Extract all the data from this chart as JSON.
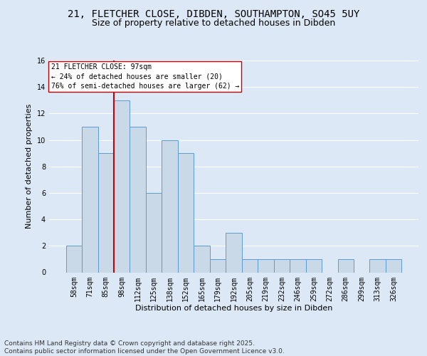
{
  "title1": "21, FLETCHER CLOSE, DIBDEN, SOUTHAMPTON, SO45 5UY",
  "title2": "Size of property relative to detached houses in Dibden",
  "xlabel": "Distribution of detached houses by size in Dibden",
  "ylabel": "Number of detached properties",
  "categories": [
    "58sqm",
    "71sqm",
    "85sqm",
    "98sqm",
    "112sqm",
    "125sqm",
    "138sqm",
    "152sqm",
    "165sqm",
    "179sqm",
    "192sqm",
    "205sqm",
    "219sqm",
    "232sqm",
    "246sqm",
    "259sqm",
    "272sqm",
    "286sqm",
    "299sqm",
    "313sqm",
    "326sqm"
  ],
  "values": [
    2,
    11,
    9,
    13,
    11,
    6,
    10,
    9,
    2,
    1,
    3,
    1,
    1,
    1,
    1,
    1,
    0,
    1,
    0,
    1,
    1
  ],
  "bar_color": "#c9d9e8",
  "bar_edge_color": "#5b9bd5",
  "vline_x_index": 3,
  "vline_color": "#cc0000",
  "annotation_text": "21 FLETCHER CLOSE: 97sqm\n← 24% of detached houses are smaller (20)\n76% of semi-detached houses are larger (62) →",
  "annotation_box_color": "#ffffff",
  "annotation_box_edge": "#cc0000",
  "ylim": [
    0,
    16
  ],
  "yticks": [
    0,
    2,
    4,
    6,
    8,
    10,
    12,
    14,
    16
  ],
  "background_color": "#dce8f5",
  "grid_color": "#ffffff",
  "footer_text": "Contains HM Land Registry data © Crown copyright and database right 2025.\nContains public sector information licensed under the Open Government Licence v3.0.",
  "title_fontsize": 10,
  "subtitle_fontsize": 9,
  "axis_label_fontsize": 8,
  "tick_fontsize": 7,
  "footer_fontsize": 6.5,
  "annotation_fontsize": 7
}
